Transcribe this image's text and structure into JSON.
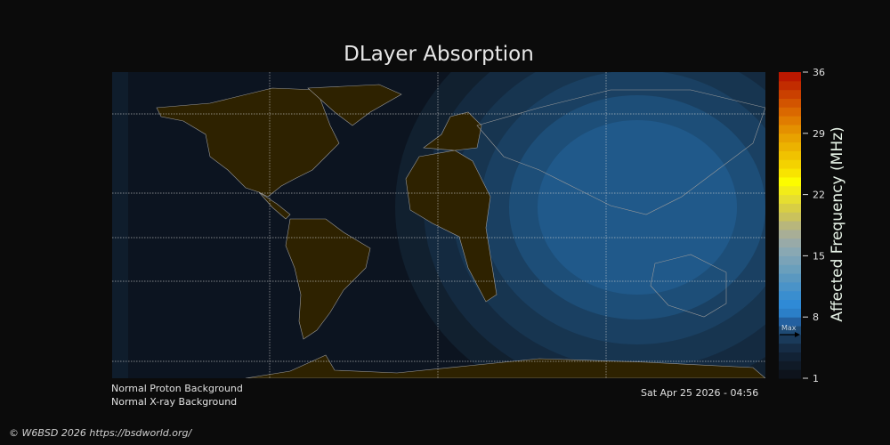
{
  "title": "DLayer Absorption",
  "status": {
    "proton": "Normal Proton Background",
    "xray": "Normal X-ray Background",
    "timestamp": "Sat Apr 25 2026 - 04:56"
  },
  "footer": {
    "copyright": "© W6BSD 2026 https://bsdworld.org/"
  },
  "colorbar": {
    "label": "Affected Frequency (MHz)",
    "range": [
      1,
      36
    ],
    "ticks": [
      "36",
      "29",
      "22",
      "15",
      "8",
      "1"
    ],
    "max_label": "Max",
    "max_value": 6,
    "colors": [
      "#0e131c",
      "#101a27",
      "#122235",
      "#162c45",
      "#1a3a5a",
      "#1e4a74",
      "#2360a0",
      "#2b7fc8",
      "#2f8ad6",
      "#3a8ecf",
      "#4a93c8",
      "#5a98c0",
      "#6a9fbc",
      "#7aa3b8",
      "#89a8b3",
      "#98aaa8",
      "#a8ae96",
      "#b8b67c",
      "#cac25c",
      "#d8ce44",
      "#e6de30",
      "#f2ec18",
      "#fcfc00",
      "#f8e400",
      "#f4d200",
      "#f0c200",
      "#ecb200",
      "#e8a200",
      "#e49000",
      "#e07c00",
      "#da6800",
      "#d25400",
      "#ca4000",
      "#c22c00",
      "#ba1800"
    ]
  },
  "map": {
    "night_color": "#0c1420",
    "land_night_color": "#2e2200",
    "absorption_colors": [
      "#11202f",
      "#142a40",
      "#173550",
      "#1a4062",
      "#1d4e78",
      "#20598a"
    ]
  }
}
